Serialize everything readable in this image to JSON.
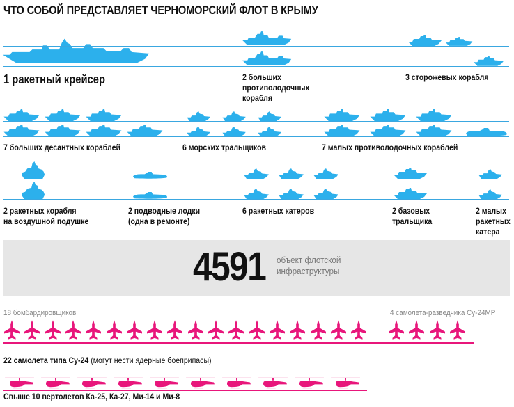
{
  "title": "ЧТО СОБОЙ ПРЕДСТАВЛЯЕТ ЧЕРНОМОРСКИЙ ФЛОТ В КРЫМУ",
  "colors": {
    "ships": "#2cb0ec",
    "aircraft": "#e8167b",
    "band": "#e6e6e6"
  },
  "icons": {
    "ship": "ship-silhouette-icon",
    "plane": "bomber-silhouette-icon",
    "helicopter": "helicopter-silhouette-icon"
  },
  "fleet": {
    "cruiser": "1 ракетный крейсер",
    "asw_large": "2 больших\nпротиволодочных\nкорабля",
    "patrol": "3 сторожевых корабля",
    "landing": "7 больших десантных кораблей",
    "minesweepers": "6 морских тральщиков",
    "asw_small": "7 малых противолодочных кораблей",
    "hovercraft": "2 ракетных корабля\nна воздушной подушке",
    "submarines": "2 подводные лодки\n(одна в ремонте)",
    "missile_boats": "6 ракетных катеров",
    "base_minesweepers": "2 базовых\nтральщика",
    "small_missile": "2 малых\nракетных\nкатера"
  },
  "infrastructure": {
    "number": "4591",
    "text": "объект флотской\nинфраструктуры"
  },
  "aircraft": {
    "bombers": "18 бомбардировщиков",
    "recon": "4 самолета-разведчика Су-24МР",
    "su24_bold": "22 самолета типа Су-24",
    "su24_note": " (могут нести ядерные боеприпасы)",
    "bomber_count": 18,
    "recon_count": 4
  },
  "helicopters": {
    "label": "Свыше 10 вертолетов Ка-25, Ка-27, Ми-14 и Ми-8",
    "count": 10
  }
}
